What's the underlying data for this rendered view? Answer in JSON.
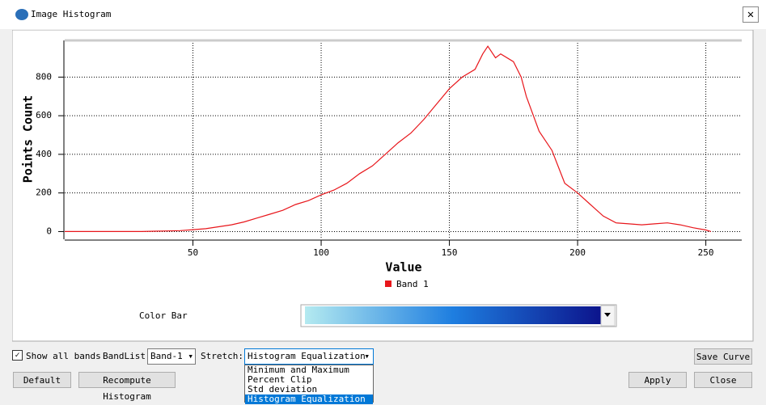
{
  "window": {
    "title": "Image Histogram"
  },
  "chart_data": {
    "type": "line",
    "x_label": "Value",
    "y_label": "Points Count",
    "x": [
      0,
      5,
      10,
      15,
      20,
      25,
      30,
      35,
      40,
      45,
      50,
      55,
      60,
      65,
      70,
      75,
      80,
      85,
      90,
      95,
      100,
      105,
      110,
      115,
      120,
      125,
      130,
      135,
      140,
      145,
      150,
      155,
      160,
      163,
      165,
      168,
      170,
      175,
      178,
      180,
      185,
      190,
      195,
      200,
      205,
      210,
      215,
      220,
      225,
      230,
      235,
      240,
      245,
      250,
      252
    ],
    "series": [
      {
        "name": "Band 1",
        "color": "#e8161b",
        "values": [
          0,
          0,
          0,
          0,
          0,
          0,
          0,
          2,
          3,
          5,
          10,
          15,
          25,
          35,
          50,
          70,
          90,
          110,
          140,
          160,
          190,
          215,
          250,
          300,
          340,
          400,
          460,
          510,
          580,
          660,
          740,
          800,
          840,
          920,
          960,
          900,
          920,
          880,
          800,
          700,
          520,
          420,
          250,
          200,
          140,
          80,
          45,
          40,
          35,
          40,
          45,
          35,
          20,
          8,
          0
        ]
      }
    ],
    "xlim": [
      0,
      264
    ],
    "ylim": [
      -40,
      990
    ],
    "xticks": [
      50,
      100,
      150,
      200,
      250
    ],
    "yticks": [
      0,
      200,
      400,
      600,
      800
    ],
    "grid": true
  },
  "controls": {
    "color_bar_label": "Color Bar",
    "show_all_bands": "Show all bands",
    "band_list_label": "BandList",
    "band_list_value": "Band-1",
    "stretch_label": "Stretch:",
    "stretch_value": "Histogram Equalization",
    "stretch_options": [
      "Minimum and Maximum",
      "Percent Clip",
      "Std deviation",
      "Histogram Equalization"
    ],
    "buttons": {
      "save_curve": "Save Curve",
      "default": "Default",
      "recompute": "Recompute Histogram",
      "apply": "Apply",
      "close": "Close"
    }
  }
}
